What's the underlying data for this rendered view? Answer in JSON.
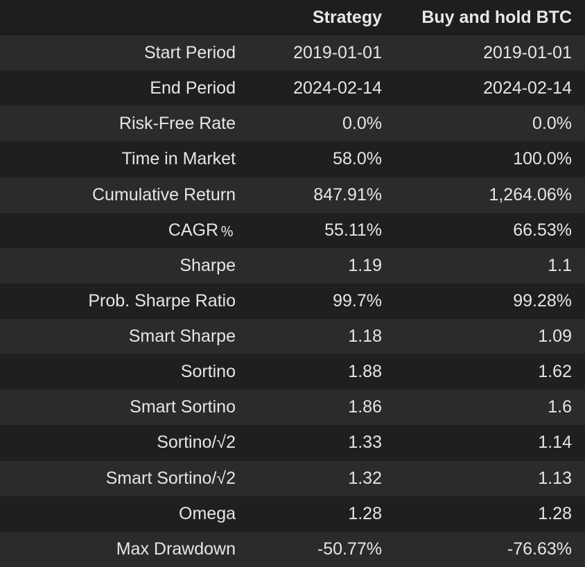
{
  "table": {
    "columns": [
      "",
      "Strategy",
      "Buy and hold BTC"
    ],
    "rows": [
      {
        "metric": "Start Period",
        "strategy": "2019-01-01",
        "benchmark": "2019-01-01"
      },
      {
        "metric": "End Period",
        "strategy": "2024-02-14",
        "benchmark": "2024-02-14"
      },
      {
        "metric": "Risk-Free Rate",
        "strategy": "0.0%",
        "benchmark": "0.0%"
      },
      {
        "metric": "Time in Market",
        "strategy": "58.0%",
        "benchmark": "100.0%"
      },
      {
        "metric": "Cumulative Return",
        "strategy": "847.91%",
        "benchmark": "1,264.06%"
      },
      {
        "metric": "CAGR﹪",
        "strategy": "55.11%",
        "benchmark": "66.53%"
      },
      {
        "metric": "Sharpe",
        "strategy": "1.19",
        "benchmark": "1.1"
      },
      {
        "metric": "Prob. Sharpe Ratio",
        "strategy": "99.7%",
        "benchmark": "99.28%"
      },
      {
        "metric": "Smart Sharpe",
        "strategy": "1.18",
        "benchmark": "1.09"
      },
      {
        "metric": "Sortino",
        "strategy": "1.88",
        "benchmark": "1.62"
      },
      {
        "metric": "Smart Sortino",
        "strategy": "1.86",
        "benchmark": "1.6"
      },
      {
        "metric": "Sortino/√2",
        "strategy": "1.33",
        "benchmark": "1.14"
      },
      {
        "metric": "Smart Sortino/√2",
        "strategy": "1.32",
        "benchmark": "1.13"
      },
      {
        "metric": "Omega",
        "strategy": "1.28",
        "benchmark": "1.28"
      },
      {
        "metric": "Max Drawdown",
        "strategy": "-50.77%",
        "benchmark": "-76.63%"
      }
    ]
  },
  "colors": {
    "background": "#1e1e1e",
    "row_odd": "#2b2b2b",
    "row_even": "#1f1f1f",
    "text": "#e6e6e6"
  }
}
